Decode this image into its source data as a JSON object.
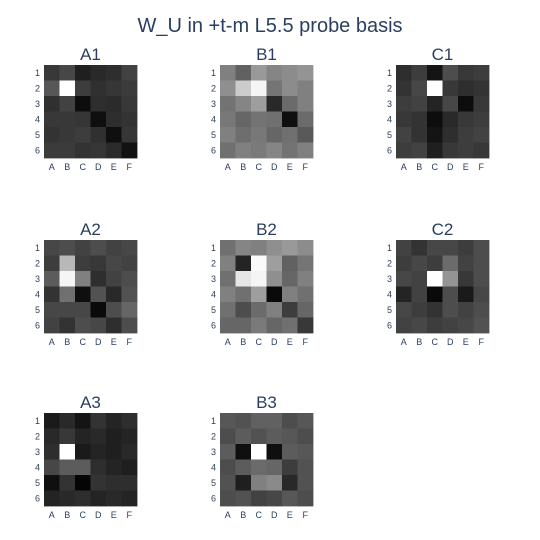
{
  "title": "W_U in +t-m L5.5 probe basis",
  "chart_data": {
    "type": "heatmap",
    "title": "W_U in +t-m L5.5 probe basis",
    "colorscale": "greys",
    "x_ticks": [
      "A",
      "B",
      "C",
      "D",
      "E",
      "F"
    ],
    "y_ticks": [
      "1",
      "2",
      "3",
      "4",
      "5",
      "6"
    ],
    "panels": [
      {
        "name": "A1",
        "z": [
          [
            0.22,
            0.28,
            0.12,
            0.16,
            0.18,
            0.26
          ],
          [
            0.34,
            1.0,
            0.24,
            0.19,
            0.21,
            0.23
          ],
          [
            0.19,
            0.26,
            0.05,
            0.18,
            0.17,
            0.22
          ],
          [
            0.22,
            0.22,
            0.21,
            0.06,
            0.18,
            0.2
          ],
          [
            0.2,
            0.22,
            0.24,
            0.19,
            0.06,
            0.21
          ],
          [
            0.23,
            0.23,
            0.2,
            0.21,
            0.17,
            0.07
          ]
        ]
      },
      {
        "name": "B1",
        "z": [
          [
            0.5,
            0.38,
            0.6,
            0.52,
            0.55,
            0.58
          ],
          [
            0.56,
            0.8,
            0.96,
            0.46,
            0.55,
            0.5
          ],
          [
            0.45,
            0.52,
            0.62,
            0.16,
            0.42,
            0.5
          ],
          [
            0.47,
            0.4,
            0.45,
            0.44,
            0.06,
            0.42
          ],
          [
            0.5,
            0.43,
            0.47,
            0.4,
            0.44,
            0.35
          ],
          [
            0.44,
            0.5,
            0.48,
            0.52,
            0.45,
            0.5
          ]
        ]
      },
      {
        "name": "C1",
        "z": [
          [
            0.18,
            0.24,
            0.08,
            0.3,
            0.22,
            0.24
          ],
          [
            0.2,
            0.28,
            1.0,
            0.22,
            0.18,
            0.2
          ],
          [
            0.24,
            0.26,
            0.14,
            0.28,
            0.05,
            0.22
          ],
          [
            0.22,
            0.2,
            0.05,
            0.16,
            0.22,
            0.24
          ],
          [
            0.26,
            0.2,
            0.08,
            0.18,
            0.24,
            0.26
          ],
          [
            0.24,
            0.26,
            0.12,
            0.22,
            0.24,
            0.22
          ]
        ]
      },
      {
        "name": "A2",
        "z": [
          [
            0.28,
            0.3,
            0.26,
            0.3,
            0.26,
            0.28
          ],
          [
            0.24,
            0.72,
            0.24,
            0.22,
            0.28,
            0.26
          ],
          [
            0.36,
            0.96,
            0.5,
            0.18,
            0.26,
            0.3
          ],
          [
            0.2,
            0.44,
            0.06,
            0.32,
            0.16,
            0.32
          ],
          [
            0.28,
            0.28,
            0.28,
            0.04,
            0.3,
            0.4
          ],
          [
            0.26,
            0.2,
            0.3,
            0.28,
            0.18,
            0.3
          ]
        ]
      },
      {
        "name": "B2",
        "z": [
          [
            0.44,
            0.52,
            0.5,
            0.56,
            0.6,
            0.55
          ],
          [
            0.5,
            0.14,
            0.98,
            0.62,
            0.38,
            0.46
          ],
          [
            0.44,
            0.9,
            0.96,
            0.56,
            0.4,
            0.5
          ],
          [
            0.5,
            0.44,
            0.62,
            0.04,
            0.5,
            0.44
          ],
          [
            0.44,
            0.3,
            0.42,
            0.5,
            0.24,
            0.4
          ],
          [
            0.4,
            0.4,
            0.48,
            0.4,
            0.44,
            0.22
          ]
        ]
      },
      {
        "name": "C2",
        "z": [
          [
            0.26,
            0.2,
            0.28,
            0.28,
            0.24,
            0.3
          ],
          [
            0.24,
            0.28,
            0.24,
            0.42,
            0.26,
            0.3
          ],
          [
            0.28,
            0.26,
            1.0,
            0.58,
            0.22,
            0.3
          ],
          [
            0.14,
            0.26,
            0.04,
            0.3,
            0.1,
            0.28
          ],
          [
            0.28,
            0.24,
            0.2,
            0.3,
            0.26,
            0.3
          ],
          [
            0.26,
            0.28,
            0.24,
            0.26,
            0.28,
            0.32
          ]
        ]
      },
      {
        "name": "A3",
        "z": [
          [
            0.1,
            0.16,
            0.08,
            0.2,
            0.14,
            0.18
          ],
          [
            0.16,
            0.22,
            0.14,
            0.16,
            0.12,
            0.14
          ],
          [
            0.18,
            1.0,
            0.1,
            0.14,
            0.12,
            0.16
          ],
          [
            0.28,
            0.36,
            0.36,
            0.18,
            0.14,
            0.12
          ],
          [
            0.06,
            0.2,
            0.02,
            0.2,
            0.18,
            0.18
          ],
          [
            0.14,
            0.16,
            0.18,
            0.14,
            0.16,
            0.14
          ]
        ]
      },
      {
        "name": "B3",
        "z": [
          [
            0.34,
            0.32,
            0.38,
            0.38,
            0.3,
            0.34
          ],
          [
            0.3,
            0.36,
            0.32,
            0.36,
            0.34,
            0.3
          ],
          [
            0.36,
            0.06,
            1.0,
            0.06,
            0.36,
            0.34
          ],
          [
            0.3,
            0.36,
            0.42,
            0.4,
            0.24,
            0.32
          ],
          [
            0.32,
            0.12,
            0.5,
            0.54,
            0.16,
            0.32
          ],
          [
            0.3,
            0.32,
            0.26,
            0.28,
            0.34,
            0.3
          ]
        ]
      }
    ]
  }
}
